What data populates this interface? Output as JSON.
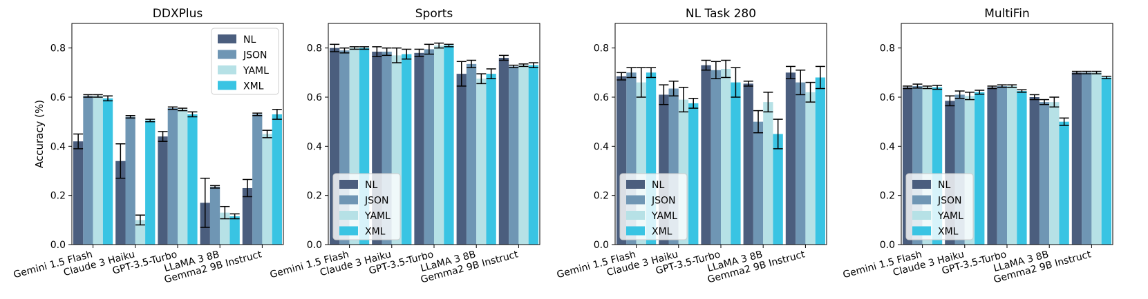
{
  "chart_data": {
    "type": "bar",
    "ylabel": "Accuracy (%)",
    "ylim": [
      0,
      0.9
    ],
    "yticks": [
      "0.0",
      "0.2",
      "0.4",
      "0.6",
      "0.8"
    ],
    "categories": [
      "Gemini 1.5 Flash",
      "Claude 3 Haiku",
      "GPT-3.5-Turbo",
      "LLaMA 3 8B",
      "Gemma2 9B Instruct"
    ],
    "series_names": [
      "NL",
      "JSON",
      "YAML",
      "XML"
    ],
    "colors": [
      "#4b5e7e",
      "#6f96b4",
      "#b6e1e6",
      "#39c4e3"
    ],
    "panels": [
      {
        "title": "DDXPlus",
        "legend": "top-right",
        "values": [
          [
            0.42,
            0.34,
            0.44,
            0.17,
            0.23
          ],
          [
            0.605,
            0.52,
            0.555,
            0.235,
            0.53
          ],
          [
            0.605,
            0.1,
            0.55,
            0.13,
            0.45
          ],
          [
            0.595,
            0.505,
            0.53,
            0.115,
            0.53
          ]
        ],
        "errors": [
          [
            0.03,
            0.07,
            0.02,
            0.1,
            0.035
          ],
          [
            0.005,
            0.005,
            0.005,
            0.005,
            0.005
          ],
          [
            0.005,
            0.02,
            0.005,
            0.025,
            0.015
          ],
          [
            0.01,
            0.005,
            0.01,
            0.01,
            0.02
          ]
        ]
      },
      {
        "title": "Sports",
        "legend": "bottom-left",
        "values": [
          [
            0.8,
            0.785,
            0.78,
            0.695,
            0.76
          ],
          [
            0.79,
            0.785,
            0.795,
            0.735,
            0.725
          ],
          [
            0.8,
            0.77,
            0.81,
            0.675,
            0.73
          ],
          [
            0.8,
            0.775,
            0.81,
            0.695,
            0.73
          ]
        ],
        "errors": [
          [
            0.015,
            0.02,
            0.015,
            0.05,
            0.01
          ],
          [
            0.01,
            0.015,
            0.02,
            0.015,
            0.005
          ],
          [
            0.005,
            0.03,
            0.01,
            0.02,
            0.005
          ],
          [
            0.005,
            0.02,
            0.005,
            0.02,
            0.01
          ]
        ]
      },
      {
        "title": "NL Task 280",
        "legend": "bottom-left",
        "values": [
          [
            0.685,
            0.61,
            0.73,
            0.655,
            0.7
          ],
          [
            0.7,
            0.635,
            0.71,
            0.5,
            0.66
          ],
          [
            0.66,
            0.59,
            0.715,
            0.58,
            0.62
          ],
          [
            0.7,
            0.575,
            0.66,
            0.45,
            0.68
          ]
        ],
        "errors": [
          [
            0.015,
            0.04,
            0.02,
            0.01,
            0.025
          ],
          [
            0.02,
            0.03,
            0.035,
            0.045,
            0.05
          ],
          [
            0.06,
            0.05,
            0.035,
            0.04,
            0.04
          ],
          [
            0.02,
            0.02,
            0.06,
            0.06,
            0.045
          ]
        ]
      },
      {
        "title": "MultiFin",
        "legend": "bottom-left",
        "values": [
          [
            0.64,
            0.585,
            0.64,
            0.6,
            0.7
          ],
          [
            0.645,
            0.61,
            0.645,
            0.58,
            0.7
          ],
          [
            0.64,
            0.605,
            0.645,
            0.58,
            0.7
          ],
          [
            0.64,
            0.62,
            0.625,
            0.5,
            0.68
          ]
        ],
        "errors": [
          [
            0.005,
            0.02,
            0.005,
            0.01,
            0.005
          ],
          [
            0.008,
            0.015,
            0.005,
            0.01,
            0.005
          ],
          [
            0.005,
            0.015,
            0.005,
            0.02,
            0.005
          ],
          [
            0.008,
            0.008,
            0.005,
            0.015,
            0.005
          ]
        ]
      }
    ]
  }
}
